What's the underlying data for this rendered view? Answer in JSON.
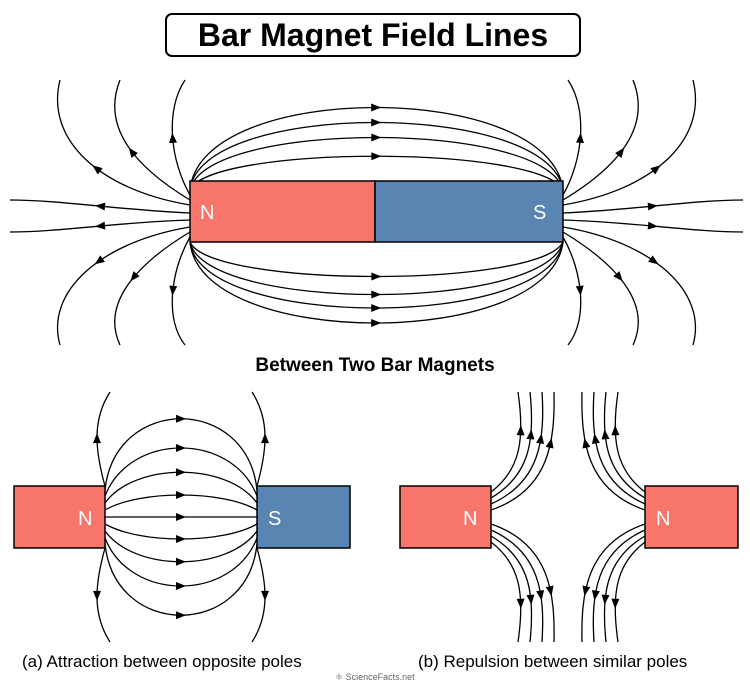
{
  "title": "Bar Magnet Field Lines",
  "subtitle": "Between Two Bar Magnets",
  "main_magnet": {
    "north_label": "N",
    "south_label": "S"
  },
  "attraction": {
    "left_label": "N",
    "right_label": "S",
    "caption": "(a) Attraction between opposite poles"
  },
  "repulsion": {
    "left_label": "N",
    "right_label": "N",
    "caption": "(b) Repulsion between similar poles"
  },
  "watermark": "ScienceFacts.net",
  "colors": {
    "north": "#f7756b",
    "south": "#5a84b1",
    "line": "#000000"
  }
}
